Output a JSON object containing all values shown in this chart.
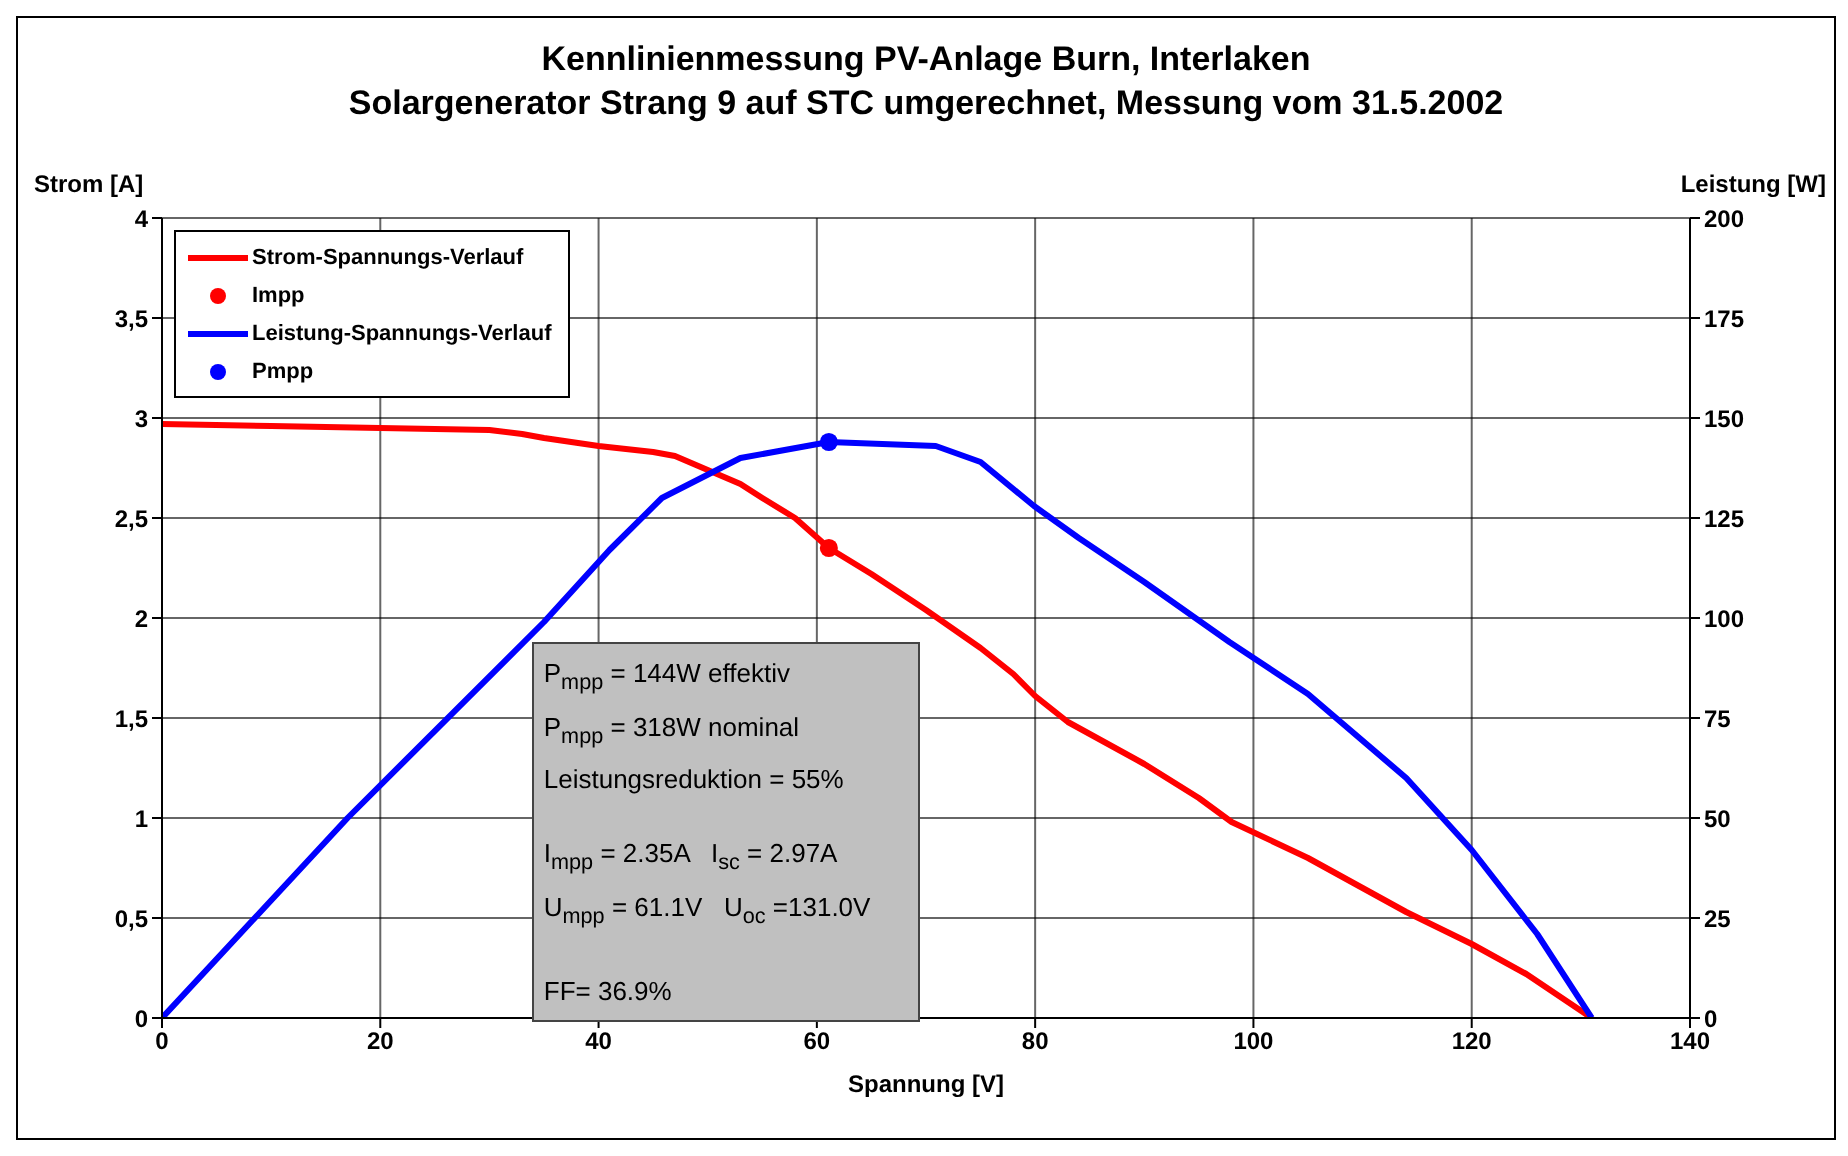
{
  "chart_data": {
    "type": "line",
    "title": "Kennlinienmessung PV-Anlage Burn, Interlaken",
    "subtitle": "Solargenerator Strang 9 auf STC umgerechnet, Messung vom 31.5.2002",
    "xlabel": "Spannung [V]",
    "ylabel": "Strom [A]",
    "y2label": "Leistung [W]",
    "xlim": [
      0,
      140
    ],
    "xticks": [
      0,
      20,
      40,
      60,
      80,
      100,
      120,
      140
    ],
    "ylim": [
      0,
      4
    ],
    "yticks": [
      0,
      {
        "value": 0.5,
        "label": "0,5"
      },
      1,
      {
        "value": 1.5,
        "label": "1,5"
      },
      2,
      {
        "value": 2.5,
        "label": "2,5"
      },
      3,
      {
        "value": 3.5,
        "label": "3,5"
      },
      4
    ],
    "y2lim": [
      0,
      200
    ],
    "y2ticks": [
      0,
      25,
      50,
      75,
      100,
      125,
      150,
      175,
      200
    ],
    "grid": true,
    "legend": "top left",
    "line_style": "solid",
    "series": [
      {
        "name": "Strom-Spannungs-Verlauf",
        "color": "#ff0000",
        "marker": "none",
        "x": [
          0,
          10,
          20,
          30,
          33,
          35,
          40,
          45,
          47,
          50,
          53,
          55,
          58,
          61.1,
          65,
          70,
          75,
          78,
          80,
          83,
          90,
          95,
          98,
          105,
          110,
          114,
          120,
          125,
          131
        ],
        "values": [
          2.97,
          2.96,
          2.95,
          2.94,
          2.92,
          2.9,
          2.86,
          2.83,
          2.81,
          2.74,
          2.67,
          2.6,
          2.5,
          2.35,
          2.22,
          2.04,
          1.85,
          1.72,
          1.61,
          1.48,
          1.27,
          1.1,
          0.98,
          0.8,
          0.65,
          0.53,
          0.37,
          0.22,
          0
        ]
      },
      {
        "name": "Impp",
        "type": "scatter",
        "color": "#ff0000",
        "marker": "circle",
        "x": [
          61.1
        ],
        "values": [
          2.35
        ]
      },
      {
        "name": "Leistung-Spannungs-Verlauf",
        "color": "#0000ff",
        "marker": "none",
        "axis": "y2",
        "x": [
          0,
          17,
          35,
          41,
          45.8,
          53,
          61.1,
          70.9,
          75,
          79.9,
          84,
          90,
          97.8,
          105,
          114,
          120,
          126,
          131
        ],
        "values": [
          0,
          50,
          99,
          117,
          130,
          140,
          144,
          143,
          139,
          128,
          120,
          109,
          94,
          81,
          60,
          42,
          21,
          0
        ]
      },
      {
        "name": "Pmpp",
        "type": "scatter",
        "color": "#0000ff",
        "marker": "circle",
        "axis": "y2",
        "x": [
          61.1
        ],
        "values": [
          144
        ]
      }
    ],
    "annotations": [
      "P$_{mpp}$ = 144W effektiv",
      "P$_{mpp}$ = 318W nominal",
      "Leistungsreduktion = 55%",
      "I$_{mpp}$ = 2.35A   I$_{sc}$ = 2.97A",
      "U$_{mpp}$ = 61.1V   U$_{oc}$ =131.0V",
      "FF= 36.9%"
    ]
  }
}
